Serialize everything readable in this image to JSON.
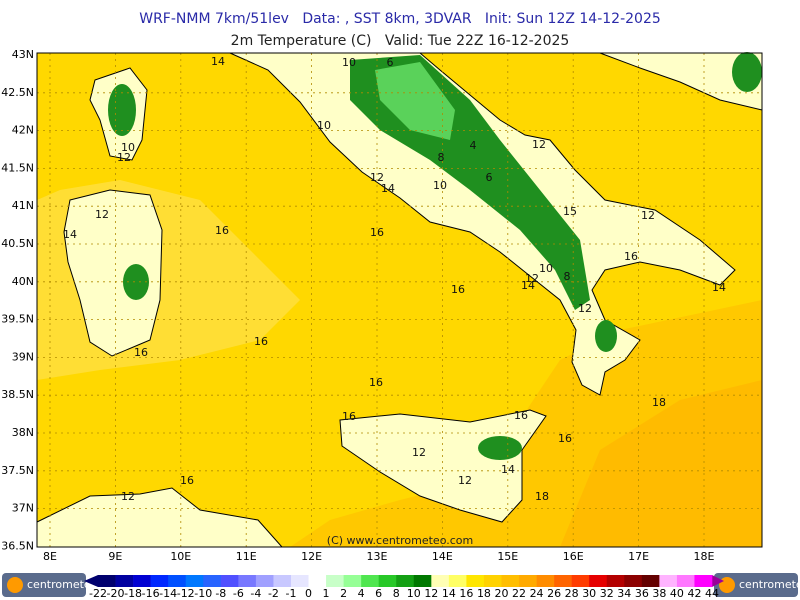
{
  "header": {
    "title": "WRF-NMM 7km/51lev   Data: , SST 8km, 3DVAR   Init: Sun 12Z 14-12-2025",
    "subtitle": "2m Temperature (C)   Valid: Tue 22Z 16-12-2025"
  },
  "map": {
    "lat_labels": [
      "43N",
      "42.5N",
      "42N",
      "41.5N",
      "41N",
      "40.5N",
      "40N",
      "39.5N",
      "39N",
      "38.5N",
      "38N",
      "37.5N",
      "37N",
      "36.5N"
    ],
    "lon_labels": [
      "8E",
      "9E",
      "10E",
      "11E",
      "12E",
      "13E",
      "14E",
      "15E",
      "16E",
      "17E",
      "18E"
    ],
    "contour_labels": [
      10,
      6,
      14,
      10,
      12,
      10,
      12,
      14,
      10,
      4,
      8,
      6,
      12,
      12,
      14,
      16,
      16,
      15,
      12,
      16,
      10,
      8,
      12,
      14,
      16,
      14,
      12,
      16,
      16,
      16,
      18,
      16,
      16,
      16,
      12,
      14,
      12,
      16,
      12,
      18
    ],
    "copyright": "(C) www.centrometeo.com"
  },
  "colorbar": {
    "labels": [
      "-22",
      "-20",
      "-18",
      "-16",
      "-14",
      "-12",
      "-10",
      "-8",
      "-6",
      "-4",
      "-2",
      "-1",
      "0",
      "1",
      "2",
      "4",
      "6",
      "8",
      "10",
      "12",
      "14",
      "16",
      "18",
      "20",
      "22",
      "24",
      "26",
      "28",
      "30",
      "32",
      "34",
      "36",
      "38",
      "40",
      "42",
      "44"
    ],
    "colors": [
      "#00006e",
      "#0000a0",
      "#0000d2",
      "#0028ff",
      "#0050ff",
      "#0078ff",
      "#2864ff",
      "#5050ff",
      "#7878ff",
      "#a0a0ff",
      "#c8c8ff",
      "#e6e6ff",
      "#ffffff",
      "#c8ffc8",
      "#96ff96",
      "#50e650",
      "#28c828",
      "#14a014",
      "#007800",
      "#ffffb4",
      "#ffff64",
      "#ffe600",
      "#ffd200",
      "#ffbe00",
      "#ffaa00",
      "#ff8c00",
      "#ff6400",
      "#ff3c00",
      "#e60000",
      "#b40000",
      "#8c0000",
      "#640000",
      "#ffb4ff",
      "#ff78ff",
      "#ff00ff"
    ],
    "logo_left": "centrometeo",
    "logo_right": "centrometeo"
  }
}
